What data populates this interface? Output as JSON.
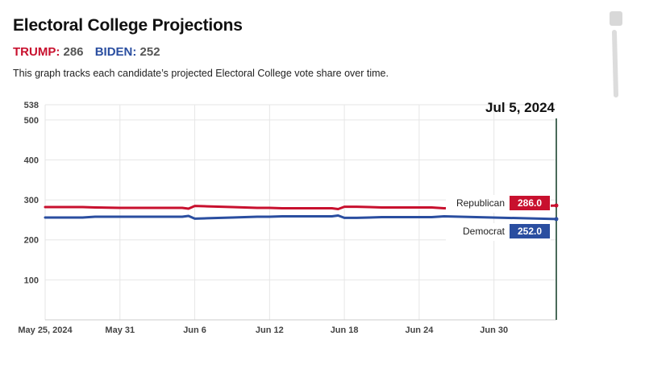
{
  "header": {
    "title": "Electoral College Projections",
    "trump_label": "TRUMP:",
    "trump_value": "286",
    "biden_label": "BIDEN:",
    "biden_value": "252",
    "description": "This graph tracks each candidate’s projected Electoral College vote share over time."
  },
  "colors": {
    "republican": "#c8102e",
    "democrat": "#2a4ea0",
    "grid": "#e6e6e6",
    "cursor": "#4a6a5a"
  },
  "chart_data": {
    "type": "line",
    "title": "Electoral College Projections",
    "xlabel": "",
    "ylabel": "",
    "ylim": [
      0,
      538
    ],
    "y_ticks": [
      538,
      500,
      400,
      300,
      200,
      100
    ],
    "x_start": "May 25, 2024",
    "x_end": "Jul 5, 2024",
    "x_ticks": [
      {
        "day": 0,
        "label": "May 25, 2024"
      },
      {
        "day": 6,
        "label": "May 31"
      },
      {
        "day": 12,
        "label": "Jun 6"
      },
      {
        "day": 18,
        "label": "Jun 12"
      },
      {
        "day": 24,
        "label": "Jun 18"
      },
      {
        "day": 30,
        "label": "Jun 24"
      },
      {
        "day": 36,
        "label": "Jun 30"
      }
    ],
    "hover_date": "Jul 5, 2024",
    "hover_day": 41,
    "series": [
      {
        "name": "Republican",
        "key": "republican",
        "current_value": "286.0",
        "points": [
          [
            0,
            282
          ],
          [
            3,
            282
          ],
          [
            4,
            281
          ],
          [
            6,
            280
          ],
          [
            11,
            280
          ],
          [
            11.5,
            278
          ],
          [
            12,
            285
          ],
          [
            13,
            284
          ],
          [
            15,
            282
          ],
          [
            16,
            281
          ],
          [
            17,
            280
          ],
          [
            18,
            280
          ],
          [
            19,
            279
          ],
          [
            22,
            279
          ],
          [
            23,
            279
          ],
          [
            23.5,
            277
          ],
          [
            24,
            283
          ],
          [
            25,
            283
          ],
          [
            26,
            282
          ],
          [
            27,
            281
          ],
          [
            31,
            281
          ],
          [
            32,
            279
          ],
          [
            41,
            286
          ]
        ]
      },
      {
        "name": "Democrat",
        "key": "democrat",
        "current_value": "252.0",
        "points": [
          [
            0,
            256
          ],
          [
            3,
            256
          ],
          [
            4,
            258
          ],
          [
            6,
            258
          ],
          [
            11,
            258
          ],
          [
            11.5,
            260
          ],
          [
            12,
            253
          ],
          [
            13,
            254
          ],
          [
            15,
            256
          ],
          [
            16,
            257
          ],
          [
            17,
            258
          ],
          [
            18,
            258
          ],
          [
            19,
            259
          ],
          [
            22,
            259
          ],
          [
            23,
            259
          ],
          [
            23.5,
            261
          ],
          [
            24,
            255
          ],
          [
            25,
            255
          ],
          [
            26,
            256
          ],
          [
            27,
            257
          ],
          [
            31,
            257
          ],
          [
            32,
            259
          ],
          [
            41,
            252
          ]
        ]
      }
    ]
  }
}
